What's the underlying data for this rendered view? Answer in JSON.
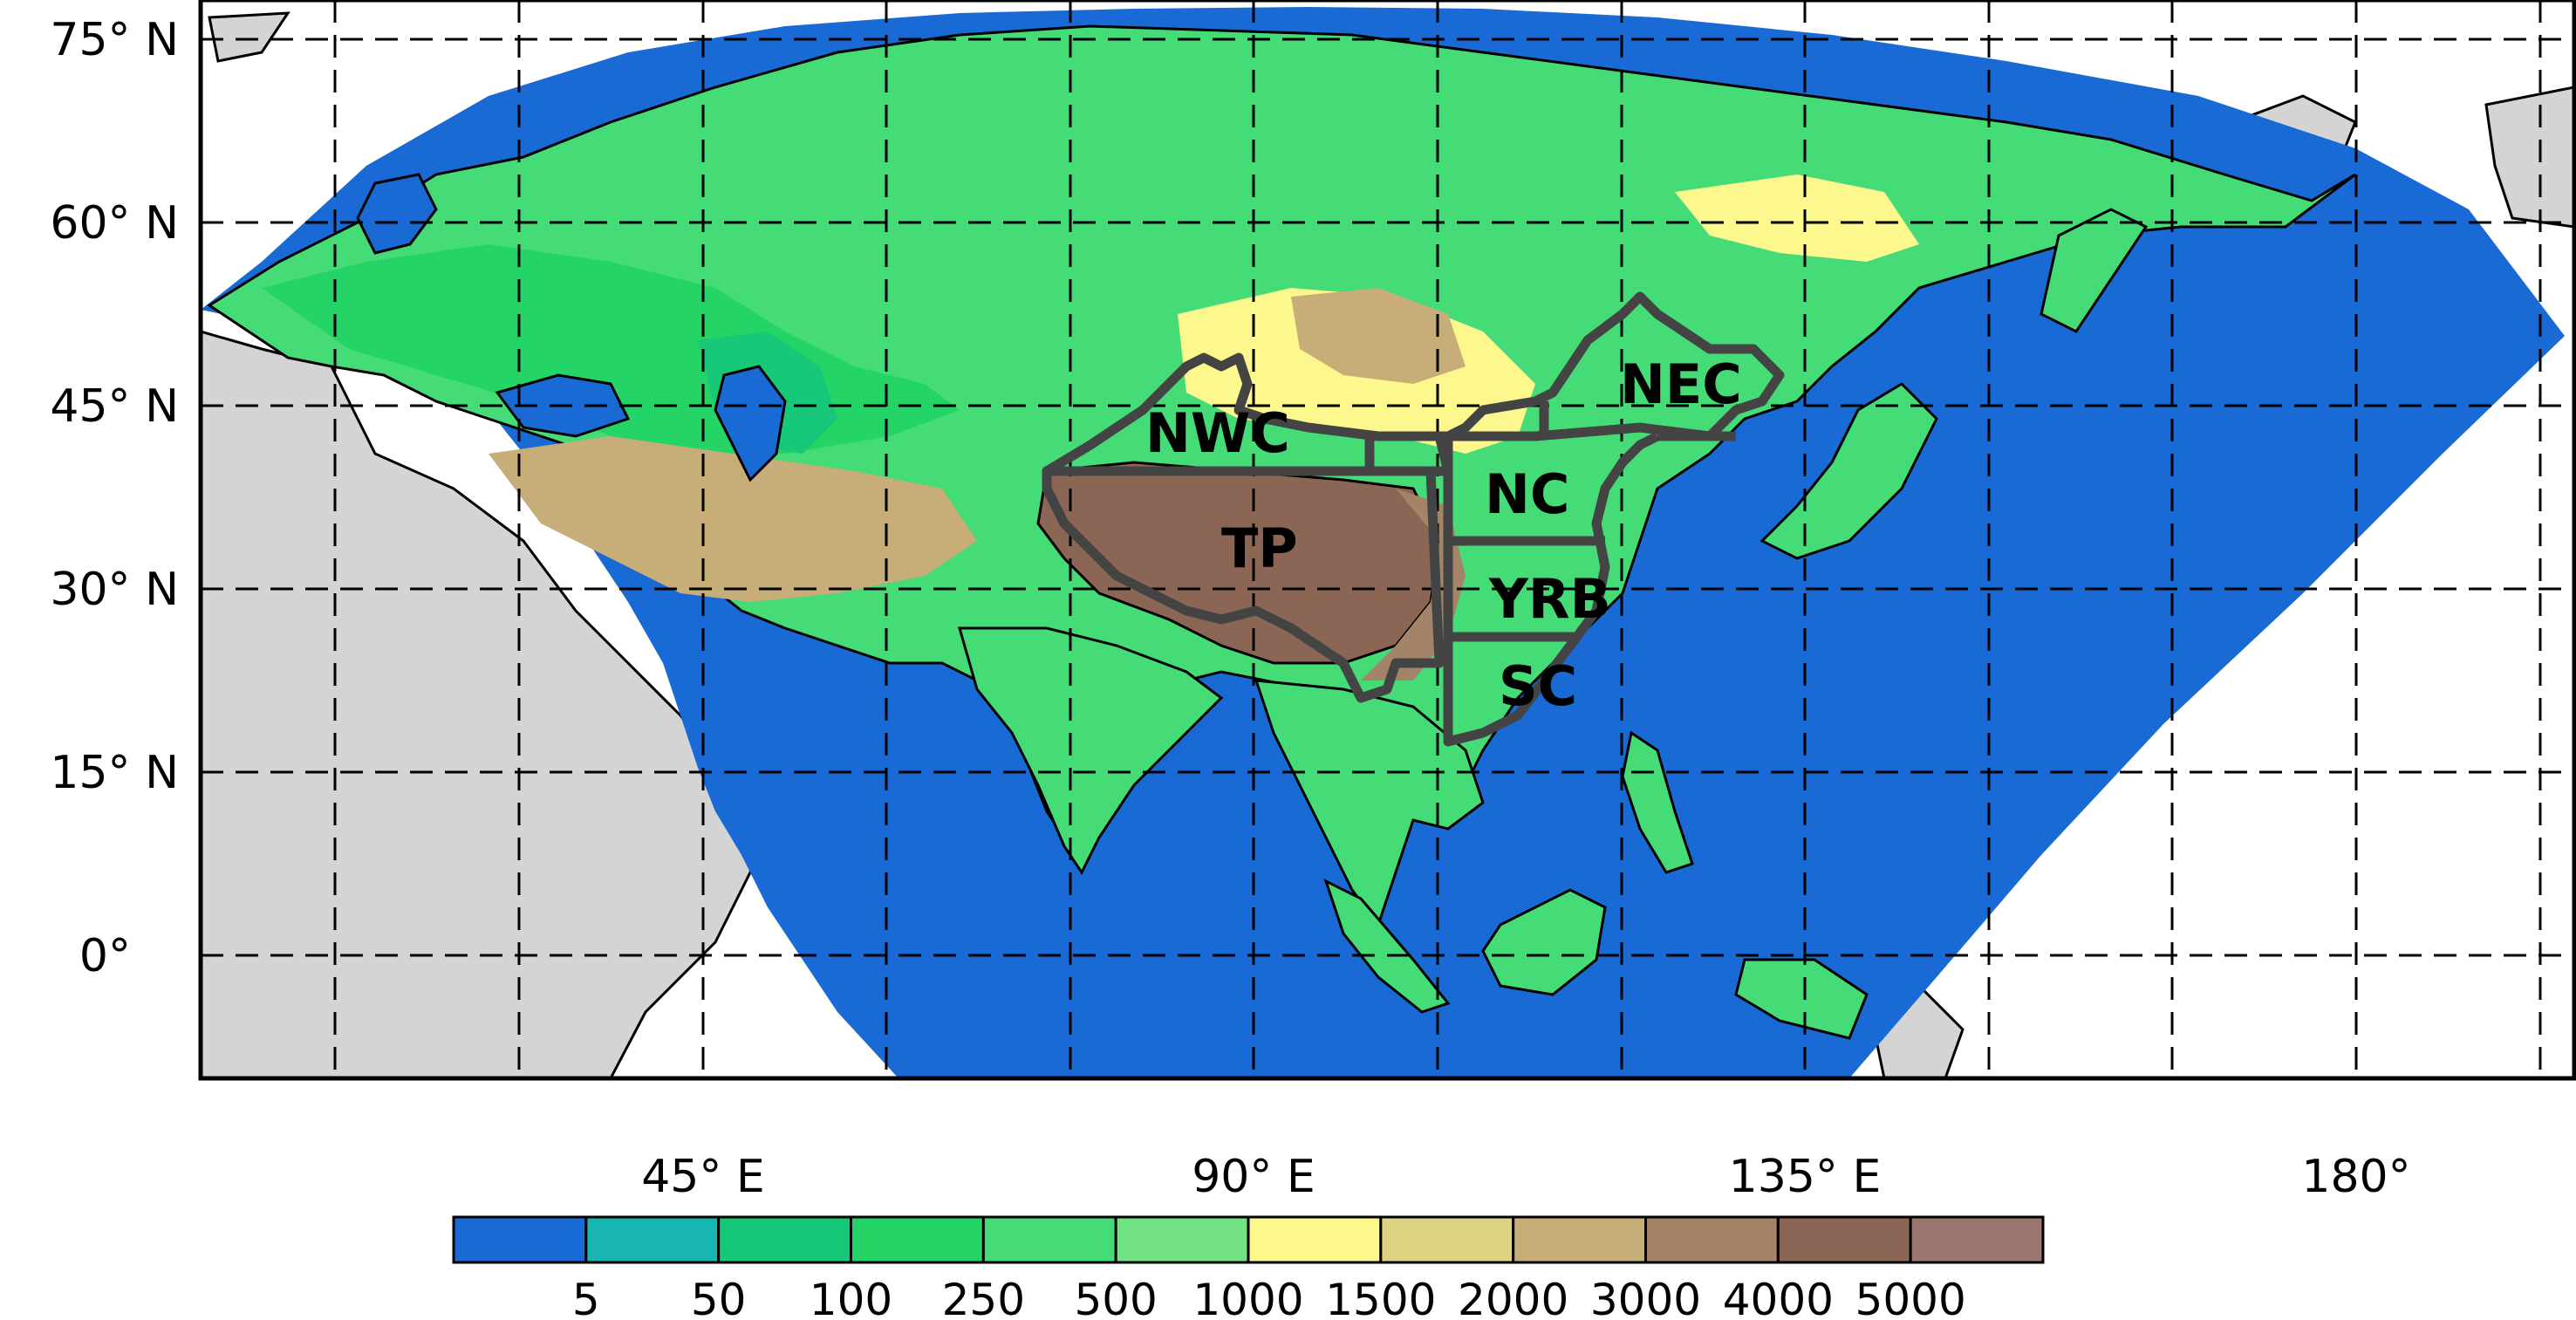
{
  "map": {
    "lat_labels": [
      "75° N",
      "60° N",
      "45° N",
      "30° N",
      "15° N",
      "0°"
    ],
    "lon_labels": [
      "45° E",
      "90° E",
      "135° E",
      "180°"
    ],
    "regions": [
      "NWC",
      "NEC",
      "NC",
      "TP",
      "YRB",
      "SC"
    ]
  },
  "colorbar": {
    "labels": [
      "5",
      "50",
      "100",
      "250",
      "500",
      "1000",
      "1500",
      "2000",
      "3000",
      "4000",
      "5000"
    ],
    "colors": [
      "#1a6ad6",
      "#19b5b0",
      "#16c878",
      "#25d466",
      "#45dc78",
      "#72e283",
      "#fdf88d",
      "#ddd383",
      "#c7ad77",
      "#a48468",
      "#8b6654",
      "#9a7770"
    ]
  },
  "colors": {
    "ocean": "#1a6ad6",
    "land_outside": "#d4d4d4",
    "region_border": "#444444"
  }
}
